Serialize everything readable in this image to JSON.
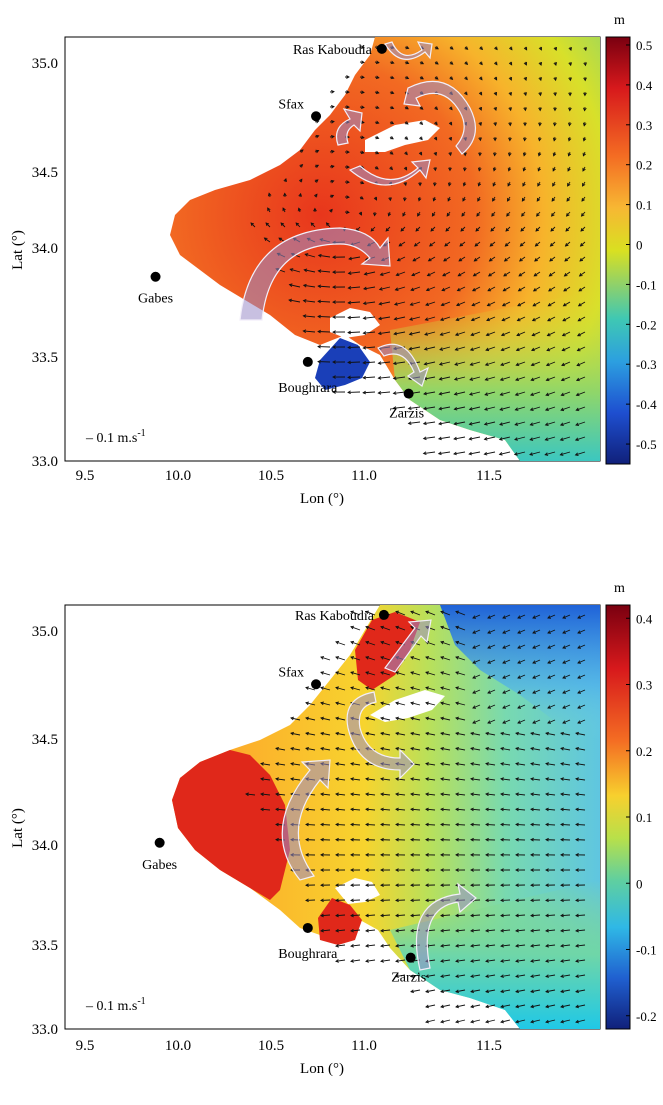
{
  "panels": [
    {
      "id": "top",
      "colorbar": {
        "unit": "m",
        "ticks": [
          "0.5",
          "0.4",
          "0.3",
          "0.2",
          "0.1",
          "0",
          "-0.1",
          "-0.2",
          "-0.3",
          "-0.4",
          "-0.5"
        ],
        "range": [
          -0.55,
          0.52
        ]
      },
      "axes": {
        "xlabel": "Lon (°)",
        "ylabel": "Lat (°)",
        "xticks": [
          "9.5",
          "10.0",
          "10.5",
          "11.0",
          "11.5"
        ],
        "yticks": [
          "35.0",
          "34.5",
          "34.0",
          "33.5",
          "33.0"
        ]
      },
      "scale_label": "– 0.1 m.s",
      "scale_exponent": "-1",
      "places": [
        {
          "name": "Ras Kaboudia",
          "lon": 10.94,
          "lat": 35.06
        },
        {
          "name": "Sfax",
          "lon": 10.62,
          "lat": 34.72
        },
        {
          "name": "Gabes",
          "lon": 9.84,
          "lat": 33.91
        },
        {
          "name": "Boughrara",
          "lon": 10.58,
          "lat": 33.48
        },
        {
          "name": "Zarzis",
          "lon": 11.07,
          "lat": 33.32
        }
      ],
      "description_colors": {
        "high": "#c0392b",
        "low": "#1e3fb0"
      }
    },
    {
      "id": "bottom",
      "colorbar": {
        "unit": "m",
        "ticks": [
          "0.4",
          "0.3",
          "0.2",
          "0.1",
          "0",
          "-0.1",
          "-0.2"
        ],
        "range": [
          -0.22,
          0.42
        ]
      },
      "axes": {
        "xlabel": "Lon (°)",
        "ylabel": "Lat (°)",
        "xticks": [
          "9.5",
          "10.0",
          "10.5",
          "11.0",
          "11.5"
        ],
        "yticks": [
          "35.0",
          "34.5",
          "34.0",
          "33.5",
          "33.0"
        ]
      },
      "scale_label": "– 0.1 m.s",
      "scale_exponent": "-1",
      "places": [
        {
          "name": "Ras Kaboudia",
          "lon": 10.95,
          "lat": 35.07
        },
        {
          "name": "Sfax",
          "lon": 10.62,
          "lat": 34.72
        },
        {
          "name": "Gabes",
          "lon": 9.86,
          "lat": 33.92
        },
        {
          "name": "Boughrara",
          "lon": 10.58,
          "lat": 33.49
        },
        {
          "name": "Zarzis",
          "lon": 11.08,
          "lat": 33.34
        }
      ],
      "description_colors": {
        "high": "#c0392b",
        "low": "#1e3fb0"
      }
    }
  ]
}
